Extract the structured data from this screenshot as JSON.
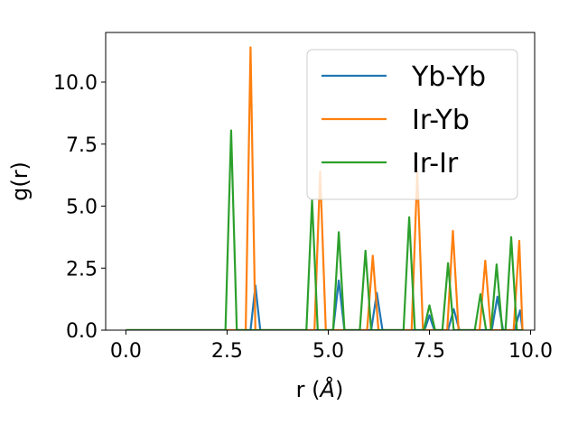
{
  "chart_data": {
    "type": "line",
    "xlabel": "r (",
    "xlabel_symbol": "Å",
    "xlabel_close": ")",
    "ylabel": "g(r)",
    "xlim": [
      -0.5,
      10.1
    ],
    "ylim": [
      0,
      12
    ],
    "xticks": [
      0.0,
      2.5,
      5.0,
      7.5,
      10.0
    ],
    "xtick_labels": [
      "0.0",
      "2.5",
      "5.0",
      "7.5",
      "10.0"
    ],
    "yticks": [
      0.0,
      2.5,
      5.0,
      7.5,
      10.0
    ],
    "ytick_labels": [
      "0.0",
      "2.5",
      "5.0",
      "7.5",
      "10.0"
    ],
    "grid": false,
    "legend_position": "top-right",
    "series": [
      {
        "name": "Yb-Yb",
        "color": "#1f77b4",
        "x": [
          0.0,
          3.08,
          3.2,
          3.32,
          5.12,
          5.26,
          5.4,
          6.06,
          6.2,
          6.34,
          7.38,
          7.5,
          7.62,
          7.96,
          8.1,
          8.24,
          9.04,
          9.18,
          9.32,
          9.6,
          9.74,
          9.8
        ],
        "y": [
          0.0,
          0.0,
          1.8,
          0.0,
          0.0,
          2.0,
          0.0,
          0.0,
          1.5,
          0.0,
          0.0,
          0.6,
          0.0,
          0.0,
          0.85,
          0.0,
          0.0,
          1.35,
          0.0,
          0.0,
          0.8,
          0.0
        ]
      },
      {
        "name": "Ir-Yb",
        "color": "#ff7f0e",
        "x": [
          0.0,
          2.96,
          3.08,
          3.2,
          4.66,
          4.8,
          4.94,
          5.96,
          6.1,
          6.24,
          7.06,
          7.2,
          7.34,
          7.94,
          8.08,
          8.22,
          8.74,
          8.88,
          9.02,
          9.58,
          9.72,
          9.8
        ],
        "y": [
          0.0,
          0.0,
          11.4,
          0.0,
          0.0,
          6.4,
          0.0,
          0.0,
          3.0,
          0.0,
          0.0,
          6.4,
          0.0,
          0.0,
          4.0,
          0.0,
          0.0,
          2.8,
          0.0,
          0.0,
          3.6,
          0.0
        ]
      },
      {
        "name": "Ir-Ir",
        "color": "#2ca02c",
        "x": [
          0.0,
          2.46,
          2.6,
          2.74,
          4.46,
          4.6,
          4.74,
          5.12,
          5.26,
          5.4,
          5.78,
          5.92,
          6.06,
          6.86,
          7.0,
          7.14,
          7.36,
          7.5,
          7.64,
          7.82,
          7.96,
          8.1,
          8.62,
          8.76,
          8.9,
          9.02,
          9.16,
          9.3,
          9.38,
          9.52,
          9.66,
          9.8
        ],
        "y": [
          0.0,
          0.0,
          8.05,
          0.0,
          0.0,
          5.25,
          0.0,
          0.0,
          3.95,
          0.0,
          0.0,
          3.2,
          0.0,
          0.0,
          4.55,
          0.0,
          0.0,
          1.0,
          0.0,
          0.0,
          2.7,
          0.0,
          0.0,
          1.45,
          0.0,
          0.0,
          2.65,
          0.0,
          0.0,
          3.75,
          0.0,
          0.0
        ]
      }
    ]
  }
}
